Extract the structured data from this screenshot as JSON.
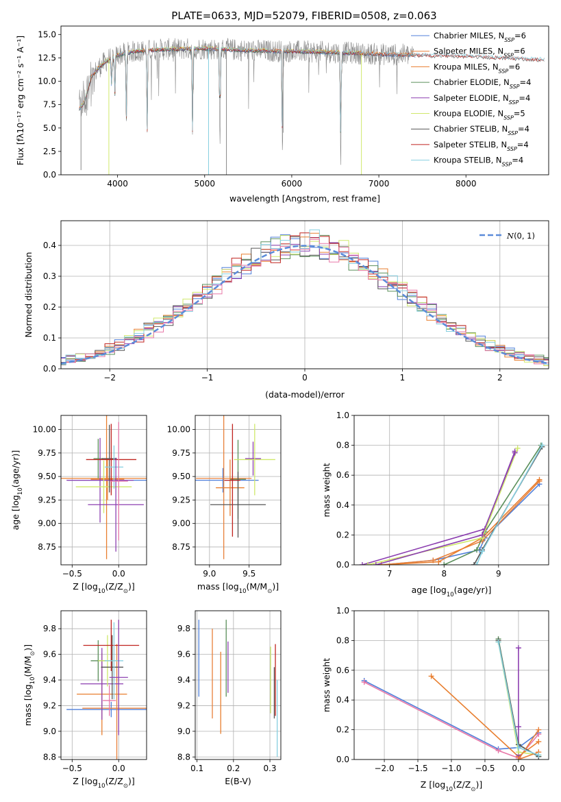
{
  "figure_title": "PLATE=0633, MJD=52079, FIBERID=0508, z=0.063",
  "colors": [
    "#4f7fd9",
    "#e8803a",
    "#e87e2e",
    "#5a8f5a",
    "#8c3fb0",
    "#cfe86a",
    "#555555",
    "#c0231f",
    "#86cfe0"
  ],
  "chart_data": [
    {
      "id": "spectrum",
      "type": "line",
      "xlabel": "wavelength [Angstrom, rest frame]",
      "ylabel": "Flux [f$_\\lambda$10$^{-17}$ erg cm$^{-2}$ s$^{-1}$ A$^{-1}$]",
      "ylabel_text": "Flux [fλ10⁻¹⁷ erg cm⁻² s⁻¹ A⁻¹]",
      "xlim": [
        3350,
        8950
      ],
      "ylim": [
        0,
        15.9
      ],
      "xticks": [
        4000,
        5000,
        6000,
        7000,
        8000
      ],
      "yticks": [
        0.0,
        2.5,
        5.0,
        7.5,
        10.0,
        12.5,
        15.0
      ],
      "ytick_labels": [
        "0.0",
        "2.5",
        "5.0",
        "7.5",
        "10.0",
        "12.5",
        "15.0"
      ],
      "legend_position": "right",
      "legend": [
        {
          "prefix": "Chabrier MILES, N",
          "sub": "SSP",
          "suffix": "=6"
        },
        {
          "prefix": "Salpeter MILES, N",
          "sub": "SSP",
          "suffix": "=6"
        },
        {
          "prefix": "Kroupa MILES, N",
          "sub": "SSP",
          "suffix": "=6"
        },
        {
          "prefix": "Chabrier ELODIE, N",
          "sub": "SSP",
          "suffix": "=4"
        },
        {
          "prefix": "Salpeter ELODIE, N",
          "sub": "SSP",
          "suffix": "=4"
        },
        {
          "prefix": "Kroupa ELODIE, N",
          "sub": "SSP",
          "suffix": "=5"
        },
        {
          "prefix": "Chabrier STELIB, N",
          "sub": "SSP",
          "suffix": "=4"
        },
        {
          "prefix": "Salpeter STELIB, N",
          "sub": "SSP",
          "suffix": "=4"
        },
        {
          "prefix": "Kroupa STELIB, N",
          "sub": "SSP",
          "suffix": "=4"
        }
      ],
      "continuum": [
        [
          3560,
          7.0
        ],
        [
          3620,
          7.8
        ],
        [
          3700,
          10.5
        ],
        [
          3800,
          11.6
        ],
        [
          3900,
          12.4
        ],
        [
          4000,
          12.8
        ],
        [
          4200,
          13.2
        ],
        [
          4500,
          13.4
        ],
        [
          5000,
          13.5
        ],
        [
          5500,
          13.3
        ],
        [
          6000,
          13.2
        ],
        [
          6500,
          13.1
        ],
        [
          7000,
          12.9
        ],
        [
          7400,
          12.8
        ],
        [
          8000,
          12.7
        ],
        [
          8900,
          12.3
        ]
      ],
      "observed_range": [
        3560,
        7400
      ],
      "model_ranges": [
        [
          3560,
          7420
        ],
        [
          3560,
          7420
        ],
        [
          3560,
          7420
        ],
        [
          3560,
          6800
        ],
        [
          3560,
          6800
        ],
        [
          3560,
          6800
        ],
        [
          3560,
          8900
        ],
        [
          3560,
          8900
        ],
        [
          3560,
          8900
        ]
      ],
      "absorption_lines": [
        [
          3933,
          4.0
        ],
        [
          3968,
          5.0
        ],
        [
          4101,
          8.0
        ],
        [
          4340,
          9.5
        ],
        [
          4861,
          10.0
        ],
        [
          5175,
          11.0
        ],
        [
          5893,
          11.5
        ],
        [
          6563,
          12.0
        ]
      ],
      "noise_amplitude": 1.2
    },
    {
      "id": "residuals",
      "type": "histogram",
      "xlabel": "(data-model)/error",
      "ylabel": "Normed distribution",
      "xlim": [
        -2.5,
        2.5
      ],
      "ylim": [
        0,
        0.48
      ],
      "xticks": [
        -2,
        -1,
        0,
        1,
        2
      ],
      "xtick_labels": [
        "−2",
        "−1",
        "0",
        "1",
        "2"
      ],
      "yticks": [
        0.0,
        0.1,
        0.2,
        0.3,
        0.4
      ],
      "ytick_labels": [
        "0.0",
        "0.1",
        "0.2",
        "0.3",
        "0.4"
      ],
      "bin_width": 0.1,
      "reference_curve": {
        "label": "N(0,1)",
        "mean": 0.0,
        "sigma": 1.0,
        "style": "dashed",
        "color": "#5b8bd9"
      },
      "legend_position": "top-right"
    },
    {
      "id": "age_vs_Z",
      "type": "errorbar",
      "xlabel": "Z [log10(Z/Z⊙)]",
      "ylabel": "age  [log10(age/yr)]",
      "xlim": [
        -0.62,
        0.3
      ],
      "ylim": [
        8.56,
        10.15
      ],
      "xticks": [
        -0.5,
        0.0
      ],
      "xtick_labels": [
        "−0.5",
        "0.0"
      ],
      "yticks": [
        8.75,
        9.0,
        9.25,
        9.5,
        9.75,
        10.0
      ],
      "ytick_labels": [
        "8.75",
        "9.00",
        "9.25",
        "9.50",
        "9.75",
        "10.00"
      ],
      "points": [
        {
          "x": -0.08,
          "xerr": 0.47,
          "y": 9.46,
          "yerr": 0.13
        },
        {
          "x": -0.12,
          "xerr": 0.18,
          "y": 9.47,
          "yerr": 0.22
        },
        {
          "x": -0.13,
          "xerr": 0.52,
          "y": 9.48,
          "yerr": 0.86
        },
        {
          "x": -0.22,
          "xerr": 0.05,
          "y": 9.69,
          "yerr": 0.21
        },
        {
          "x": -0.2,
          "xerr": 0.36,
          "y": 9.46,
          "yerr": 0.45
        },
        {
          "x": -0.16,
          "xerr": 0.3,
          "y": 9.39,
          "yerr": 0.28
        },
        {
          "x": -0.1,
          "xerr": 0.08,
          "y": 9.69,
          "yerr": 0.36
        },
        {
          "x": -0.08,
          "xerr": 0.27,
          "y": 9.68,
          "yerr": 0.38
        },
        {
          "x": -0.05,
          "xerr": 0.1,
          "y": 9.6,
          "yerr": 0.23
        },
        {
          "x": -0.03,
          "xerr": 0.3,
          "y": 9.2,
          "yerr": 0.5
        },
        {
          "x": 0.0,
          "xerr": 0.1,
          "y": 9.45,
          "yerr": 0.63
        }
      ]
    },
    {
      "id": "age_vs_mass",
      "type": "errorbar",
      "xlabel": "mass [log10(M/M⊙)]",
      "ylabel": "",
      "xlim": [
        8.82,
        9.9
      ],
      "ylim": [
        8.56,
        10.15
      ],
      "xticks": [
        9.0,
        9.5
      ],
      "xtick_labels": [
        "9.0",
        "9.5"
      ],
      "yticks": [
        8.75,
        9.0,
        9.25,
        9.5,
        9.75,
        10.0
      ],
      "ytick_labels": [
        "8.75",
        "9.00",
        "9.25",
        "9.50",
        "9.75",
        "10.00"
      ],
      "points": [
        {
          "x": 9.17,
          "xerr": 0.45,
          "y": 9.46,
          "yerr": 0.13
        },
        {
          "x": 9.18,
          "xerr": 0.35,
          "y": 9.48,
          "yerr": 0.86
        },
        {
          "x": 9.26,
          "xerr": 0.18,
          "y": 9.38,
          "yerr": 0.3
        },
        {
          "x": 9.36,
          "xerr": 0.1,
          "y": 9.47,
          "yerr": 0.42
        },
        {
          "x": 9.55,
          "xerr": 0.1,
          "y": 9.69,
          "yerr": 0.18
        },
        {
          "x": 9.57,
          "xerr": 0.26,
          "y": 9.68,
          "yerr": 0.38
        },
        {
          "x": 9.36,
          "xerr": 0.35,
          "y": 9.2,
          "yerr": 0.35
        },
        {
          "x": 9.29,
          "xerr": 0.1,
          "y": 9.46,
          "yerr": 0.6
        }
      ]
    },
    {
      "id": "massweight_vs_age",
      "type": "line",
      "xlabel": "age  [log10(age/yr)]",
      "ylabel": "mass weight",
      "xlim": [
        6.35,
        9.92
      ],
      "ylim": [
        0,
        1.0
      ],
      "xticks": [
        7,
        8,
        9
      ],
      "xtick_labels": [
        "7",
        "8",
        "9"
      ],
      "yticks": [
        0.0,
        0.2,
        0.4,
        0.6,
        0.8,
        1.0
      ],
      "ytick_labels": [
        "0.0",
        "0.2",
        "0.4",
        "0.6",
        "0.8",
        "1.0"
      ],
      "series": [
        {
          "x": [
            6.85,
            7.8,
            8.65,
            8.75,
            9.75
          ],
          "y": [
            0.0,
            0.03,
            0.1,
            0.18,
            0.54
          ]
        },
        {
          "x": [
            6.85,
            7.8,
            8.7,
            9.75
          ],
          "y": [
            0.0,
            0.03,
            0.16,
            0.56
          ]
        },
        {
          "x": [
            6.85,
            7.9,
            8.7,
            9.75
          ],
          "y": [
            0.0,
            0.02,
            0.18,
            0.57
          ]
        },
        {
          "x": [
            8.0,
            8.6,
            8.75,
            9.78
          ],
          "y": [
            0.0,
            0.1,
            0.22,
            0.8
          ]
        },
        {
          "x": [
            6.5,
            8.75,
            9.3
          ],
          "y": [
            0.0,
            0.24,
            0.76
          ]
        },
        {
          "x": [
            6.6,
            8.7,
            9.35
          ],
          "y": [
            0.0,
            0.18,
            0.78
          ]
        },
        {
          "x": [
            8.55,
            8.7,
            9.8
          ],
          "y": [
            0.0,
            0.1,
            0.79
          ]
        },
        {
          "x": [
            6.75,
            8.7,
            9.3
          ],
          "y": [
            0.0,
            0.2,
            0.75
          ]
        },
        {
          "x": [
            8.6,
            8.7,
            9.8
          ],
          "y": [
            0.0,
            0.09,
            0.8
          ]
        }
      ],
      "colors": [
        "#4f7fd9",
        "#e8803a",
        "#e87e2e",
        "#5a8f5a",
        "#8c3fb0",
        "#cfe86a",
        "#555555",
        "#8c3fb0",
        "#86cfe0"
      ]
    },
    {
      "id": "mass_vs_Z",
      "type": "errorbar",
      "xlabel": "Z [log10(Z/Z⊙)]",
      "ylabel": "mass [log10(M/M⊙)]",
      "xlim": [
        -0.62,
        0.3
      ],
      "ylim": [
        8.78,
        9.94
      ],
      "xticks": [
        -0.5,
        0.0
      ],
      "xtick_labels": [
        "−0.5",
        "0.0"
      ],
      "yticks": [
        8.8,
        9.0,
        9.2,
        9.4,
        9.6,
        9.8
      ],
      "ytick_labels": [
        "8.8",
        "9.0",
        "9.2",
        "9.4",
        "9.6",
        "9.8"
      ],
      "points": [
        {
          "x": -0.08,
          "xerr": 0.48,
          "y": 9.17,
          "yerr": 0.06
        },
        {
          "x": -0.02,
          "xerr": 0.37,
          "y": 9.18,
          "yerr": 0.5
        },
        {
          "x": -0.18,
          "xerr": 0.27,
          "y": 9.29,
          "yerr": 0.32
        },
        {
          "x": -0.22,
          "xerr": 0.08,
          "y": 9.55,
          "yerr": 0.16
        },
        {
          "x": -0.18,
          "xerr": 0.23,
          "y": 9.37,
          "yerr": 0.28
        },
        {
          "x": -0.12,
          "xerr": 0.1,
          "y": 9.55,
          "yerr": 0.2
        },
        {
          "x": -0.07,
          "xerr": 0.12,
          "y": 9.5,
          "yerr": 0.25
        },
        {
          "x": -0.08,
          "xerr": 0.3,
          "y": 9.67,
          "yerr": 0.2
        },
        {
          "x": -0.05,
          "xerr": 0.1,
          "y": 9.55,
          "yerr": 0.3
        },
        {
          "x": 0.0,
          "xerr": 0.1,
          "y": 9.42,
          "yerr": 0.45
        },
        {
          "x": -0.1,
          "xerr": 0.07,
          "y": 9.24,
          "yerr": 0.12
        }
      ]
    },
    {
      "id": "mass_vs_EBV",
      "type": "errorbar",
      "xlabel": "E(B-V)",
      "ylabel": "",
      "xlim": [
        0.095,
        0.33
      ],
      "ylim": [
        8.78,
        9.94
      ],
      "xticks": [
        0.1,
        0.2,
        0.3
      ],
      "xtick_labels": [
        "0.1",
        "0.2",
        "0.3"
      ],
      "yticks": [
        8.8,
        9.0,
        9.2,
        9.4,
        9.6,
        9.8
      ],
      "ytick_labels": [
        "8.8",
        "9.0",
        "9.2",
        "9.4",
        "9.6",
        "9.8"
      ],
      "points": [
        {
          "x": 0.105,
          "y": 9.57,
          "yerr": 0.3
        },
        {
          "x": 0.142,
          "y": 9.45,
          "yerr": 0.35
        },
        {
          "x": 0.165,
          "y": 9.3,
          "yerr": 0.32
        },
        {
          "x": 0.18,
          "y": 9.57,
          "yerr": 0.3
        },
        {
          "x": 0.185,
          "y": 9.5,
          "yerr": 0.2
        },
        {
          "x": 0.302,
          "y": 9.4,
          "yerr": 0.26
        },
        {
          "x": 0.312,
          "y": 9.3,
          "yerr": 0.2
        },
        {
          "x": 0.315,
          "y": 9.4,
          "yerr": 0.28
        },
        {
          "x": 0.32,
          "y": 9.1,
          "yerr": 0.3
        }
      ]
    },
    {
      "id": "massweight_vs_Z",
      "type": "line",
      "xlabel": "Z [log10(Z/Z⊙)]",
      "ylabel": "mass weight",
      "xlim": [
        -2.45,
        0.45
      ],
      "ylim": [
        0,
        1.0
      ],
      "xticks": [
        -2.0,
        -1.5,
        -1.0,
        -0.5,
        0.0
      ],
      "xtick_labels": [
        "−2.0",
        "−1.5",
        "−1.0",
        "−0.5",
        "0.0"
      ],
      "yticks": [
        0.0,
        0.2,
        0.4,
        0.6,
        0.8,
        1.0
      ],
      "ytick_labels": [
        "0.0",
        "0.2",
        "0.4",
        "0.6",
        "0.8",
        "1.0"
      ],
      "series": [
        {
          "x": [
            -2.3,
            -0.3,
            0.0,
            0.3
          ],
          "y": [
            0.53,
            0.07,
            0.08,
            0.18
          ]
        },
        {
          "x": [
            -2.3,
            -0.3,
            0.0,
            0.3
          ],
          "y": [
            0.52,
            0.06,
            0.01,
            0.17
          ]
        },
        {
          "x": [
            -1.3,
            0.0,
            0.3
          ],
          "y": [
            0.56,
            0.02,
            0.12
          ]
        },
        {
          "x": [
            -0.3,
            0.0,
            0.3
          ],
          "y": [
            0.81,
            0.1,
            0.02
          ]
        },
        {
          "x": [
            0.0,
            0.0,
            0.0
          ],
          "y": [
            0.75,
            0.22,
            0.03
          ]
        },
        {
          "x": [
            -0.3,
            0.0,
            0.3
          ],
          "y": [
            0.79,
            0.05,
            0.03
          ]
        },
        {
          "x": [
            -0.3,
            0.0,
            0.3
          ],
          "y": [
            0.8,
            0.1,
            0.02
          ]
        },
        {
          "x": [
            0.3,
            0.0,
            0.3
          ],
          "y": [
            0.2,
            0.0,
            0.05
          ]
        },
        {
          "x": [
            -0.3,
            0.0,
            0.3
          ],
          "y": [
            0.79,
            0.08,
            0.03
          ]
        }
      ],
      "colors": [
        "#4f7fd9",
        "#e878a8",
        "#e87e2e",
        "#5a8f5a",
        "#8c3fb0",
        "#cfe86a",
        "#555555",
        "#e8803a",
        "#86cfe0"
      ]
    }
  ]
}
